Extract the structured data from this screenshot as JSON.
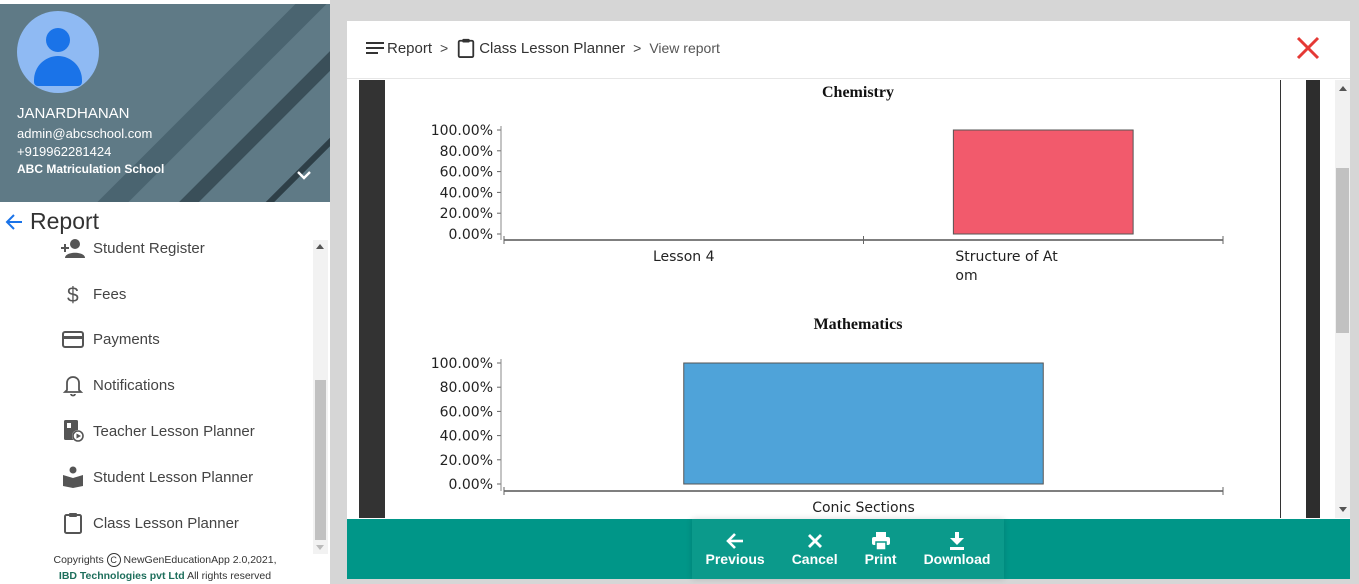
{
  "profile": {
    "name": "JANARDHANAN",
    "email": "admin@abcschool.com",
    "phone": "+919962281424",
    "school": "ABC Matriculation School"
  },
  "sidebar": {
    "section_title": "Report",
    "items": [
      {
        "label": "Student Register",
        "icon": "add-person-icon"
      },
      {
        "label": "Fees",
        "icon": "dollar-icon"
      },
      {
        "label": "Payments",
        "icon": "credit-card-icon"
      },
      {
        "label": "Notifications",
        "icon": "bell-icon"
      },
      {
        "label": "Teacher Lesson Planner",
        "icon": "teacher-planner-icon"
      },
      {
        "label": "Student Lesson Planner",
        "icon": "reading-person-icon"
      },
      {
        "label": "Class Lesson Planner",
        "icon": "clipboard-icon"
      }
    ]
  },
  "footer": {
    "copyright_prefix": "Copyrights",
    "copyright_symbol": "C",
    "app_name": "NewGenEducationApp 2.0,2021,",
    "company": "IBD Technologies pvt Ltd",
    "rights": "All rights reserved"
  },
  "breadcrumb": {
    "report": "Report",
    "separator": ">",
    "planner": "Class Lesson Planner",
    "current": "View report"
  },
  "actions": {
    "previous": "Previous",
    "cancel": "Cancel",
    "print": "Print",
    "download": "Download"
  },
  "colors": {
    "sidebar_header": "#5f7a86",
    "action_bar": "#009688",
    "close_icon": "#e53935",
    "chemistry_bar": "#f25a6c",
    "mathematics_bar": "#4fa3d9"
  },
  "chart_data": [
    {
      "type": "bar",
      "title": "Chemistry",
      "categories": [
        "Lesson 4",
        "Structure of At om"
      ],
      "category_lines": [
        [
          "Lesson 4"
        ],
        [
          "Structure of At",
          "om"
        ]
      ],
      "values": [
        0,
        100
      ],
      "yticks": [
        "100.00%",
        "80.00%",
        "60.00%",
        "40.00%",
        "20.00%",
        "0.00%"
      ],
      "ylim": [
        0,
        100
      ],
      "bar_color": "#f25a6c"
    },
    {
      "type": "bar",
      "title": "Mathematics",
      "categories": [
        "Conic Sections"
      ],
      "category_lines": [
        [
          "Conic Sections"
        ]
      ],
      "values": [
        100
      ],
      "yticks": [
        "100.00%",
        "80.00%",
        "60.00%",
        "40.00%",
        "20.00%",
        "0.00%"
      ],
      "ylim": [
        0,
        100
      ],
      "bar_color": "#4fa3d9"
    }
  ]
}
